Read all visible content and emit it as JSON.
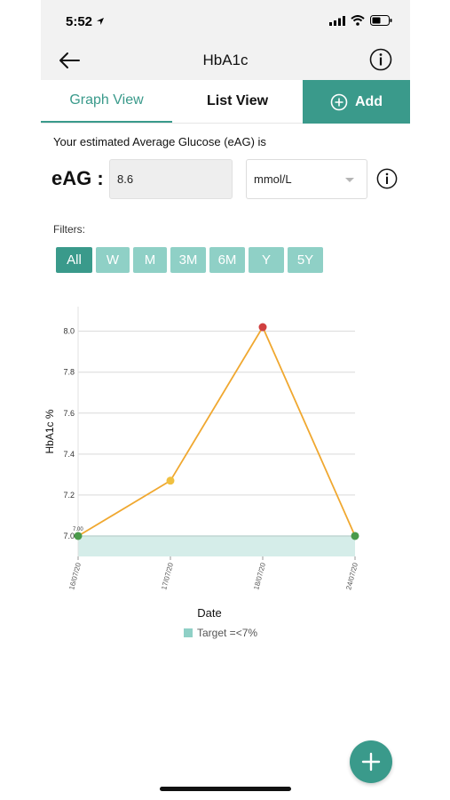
{
  "status_bar": {
    "time": "5:52"
  },
  "header": {
    "title": "HbA1c"
  },
  "tabs": {
    "graph": "Graph View",
    "list": "List View",
    "add": "Add"
  },
  "eag": {
    "caption": "Your estimated Average Glucose (eAG) is",
    "label": "eAG :",
    "value": "8.6",
    "unit": "mmol/L"
  },
  "filters": {
    "label": "Filters:",
    "items": [
      "All",
      "W",
      "M",
      "3M",
      "6M",
      "Y",
      "5Y"
    ],
    "active": "All"
  },
  "chart_data": {
    "type": "line",
    "categories": [
      "16/07/20",
      "17/07/20",
      "18/07/20",
      "24/07/20"
    ],
    "series": [
      {
        "values": [
          7.0,
          7.27,
          8.02,
          7.0
        ]
      }
    ],
    "point_colors": [
      "#4a9a4a",
      "#f0c040",
      "#d04040",
      "#4a9a4a"
    ],
    "line_color": "#f0a830",
    "ylabel": "HbA1c %",
    "xlabel": "Date",
    "ylim": [
      6.9,
      8.12
    ],
    "yticks": [
      "7.0",
      "7.2",
      "7.4",
      "7.6",
      "7.8",
      "8.0"
    ],
    "first_point_label": "7.00",
    "target_band": {
      "from": 6.9,
      "to": 7.0,
      "color": "#d5ede9",
      "edge": "#8fd0c6"
    },
    "legend": "Target =<7%",
    "grid": true
  },
  "colors": {
    "accent": "#3a9a8b",
    "accent_light": "#8fd0c6"
  }
}
